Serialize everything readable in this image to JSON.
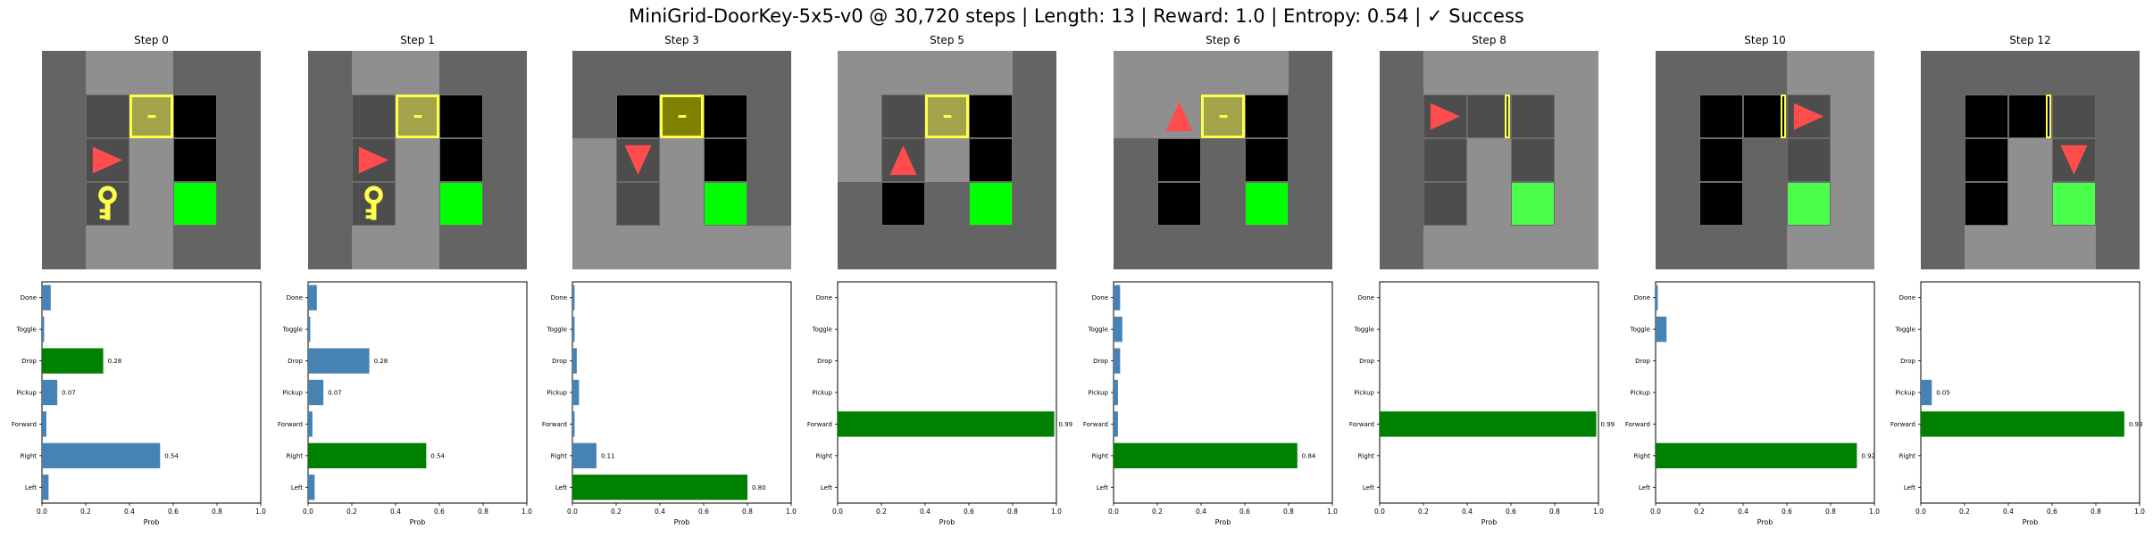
{
  "title": "MiniGrid-DoorKey-5x5-v0 @ 30,720 steps | Length: 13 | Reward: 1.0 | Entropy: 0.54 | ✓ Success",
  "colors": {
    "bar_default": "#4682b4",
    "bar_selected": "#008000",
    "agent": "#ff4c4c",
    "key": "#ffff4c",
    "door_border": "#ffff4c",
    "goal": "#00ff00",
    "floor_light": "#8f8f8f",
    "floor_dark": "#646464",
    "black": "#000000"
  },
  "actions": [
    "Left",
    "Right",
    "Forward",
    "Pickup",
    "Drop",
    "Toggle",
    "Done"
  ],
  "xlabel": "Prob",
  "xticks": [
    "0.0",
    "0.2",
    "0.4",
    "0.6",
    "0.8",
    "1.0"
  ],
  "xlim": [
    0,
    1
  ],
  "steps": [
    {
      "title": "Step 0",
      "probs": [
        0.03,
        0.54,
        0.02,
        0.07,
        0.28,
        0.01,
        0.04
      ],
      "selected": 4,
      "label": "0.54",
      "label_index": 1,
      "second_label": "0.28",
      "second_index": 4,
      "third_label": "0.07",
      "third_index": 3,
      "grid": {
        "base": [
          [
            "D",
            "L",
            "L",
            "D",
            "D"
          ],
          [
            "D",
            "C",
            "S",
            "K",
            "D"
          ],
          [
            "D",
            "C",
            "L",
            "K",
            "D"
          ],
          [
            "D",
            "C",
            "L",
            "G",
            "D"
          ],
          [
            "D",
            "L",
            "L",
            "D",
            "D"
          ]
        ],
        "agent": {
          "r": 2,
          "c": 1,
          "dir": "right"
        },
        "door": {
          "r": 1,
          "c": 2,
          "state": "locked"
        },
        "key": {
          "r": 3,
          "c": 1
        }
      }
    },
    {
      "title": "Step 1",
      "probs": [
        0.03,
        0.54,
        0.02,
        0.07,
        0.28,
        0.01,
        0.04
      ],
      "selected": 1,
      "label": "0.54",
      "label_index": 1,
      "second_label": "0.28",
      "second_index": 4,
      "third_label": "0.07",
      "third_index": 3,
      "grid": {
        "base": [
          [
            "D",
            "L",
            "L",
            "D",
            "D"
          ],
          [
            "D",
            "C",
            "S",
            "K",
            "D"
          ],
          [
            "D",
            "C",
            "L",
            "K",
            "D"
          ],
          [
            "D",
            "C",
            "L",
            "G",
            "D"
          ],
          [
            "D",
            "L",
            "L",
            "D",
            "D"
          ]
        ],
        "agent": {
          "r": 2,
          "c": 1,
          "dir": "right"
        },
        "door": {
          "r": 1,
          "c": 2,
          "state": "locked"
        },
        "key": {
          "r": 3,
          "c": 1
        }
      }
    },
    {
      "title": "Step 3",
      "probs": [
        0.8,
        0.11,
        0.01,
        0.03,
        0.02,
        0.01,
        0.01
      ],
      "selected": 0,
      "label": "0.80",
      "label_index": 0,
      "second_label": "0.11",
      "second_index": 1,
      "third_label": "",
      "third_index": -1,
      "grid": {
        "base": [
          [
            "D",
            "D",
            "D",
            "D",
            "D"
          ],
          [
            "D",
            "K",
            "S",
            "K",
            "D"
          ],
          [
            "L",
            "C",
            "L",
            "K",
            "D"
          ],
          [
            "L",
            "C",
            "L",
            "G",
            "D"
          ],
          [
            "L",
            "L",
            "L",
            "L",
            "L"
          ]
        ],
        "agent": {
          "r": 2,
          "c": 1,
          "dir": "down"
        },
        "door": {
          "r": 1,
          "c": 2,
          "state": "locked-dark"
        },
        "key": null
      }
    },
    {
      "title": "Step 5",
      "probs": [
        0.0,
        0.0,
        0.99,
        0.0,
        0.0,
        0.0,
        0.0
      ],
      "selected": 2,
      "label": "0.99",
      "label_index": 2,
      "second_label": "",
      "second_index": -1,
      "third_label": "",
      "third_index": -1,
      "grid": {
        "base": [
          [
            "L",
            "L",
            "L",
            "L",
            "D"
          ],
          [
            "L",
            "C",
            "S",
            "K",
            "D"
          ],
          [
            "L",
            "C",
            "L",
            "K",
            "D"
          ],
          [
            "D",
            "K",
            "D",
            "G",
            "D"
          ],
          [
            "D",
            "D",
            "D",
            "D",
            "D"
          ]
        ],
        "agent": {
          "r": 2,
          "c": 1,
          "dir": "up"
        },
        "door": {
          "r": 1,
          "c": 2,
          "state": "locked"
        },
        "key": null
      }
    },
    {
      "title": "Step 6",
      "probs": [
        0.0,
        0.84,
        0.02,
        0.02,
        0.03,
        0.04,
        0.03
      ],
      "selected": 1,
      "label": "0.84",
      "label_index": 1,
      "second_label": "",
      "second_index": -1,
      "third_label": "",
      "third_index": -1,
      "grid": {
        "base": [
          [
            "L",
            "L",
            "L",
            "L",
            "D"
          ],
          [
            "L",
            "L",
            "S",
            "K",
            "D"
          ],
          [
            "D",
            "K",
            "D",
            "K",
            "D"
          ],
          [
            "D",
            "K",
            "D",
            "G",
            "D"
          ],
          [
            "D",
            "D",
            "D",
            "D",
            "D"
          ]
        ],
        "agent": {
          "r": 1,
          "c": 1,
          "dir": "up"
        },
        "door": {
          "r": 1,
          "c": 2,
          "state": "locked"
        },
        "key": null
      }
    },
    {
      "title": "Step 8",
      "probs": [
        0.0,
        0.0,
        0.99,
        0.0,
        0.0,
        0.0,
        0.0
      ],
      "selected": 2,
      "label": "0.99",
      "label_index": 2,
      "second_label": "",
      "second_index": -1,
      "third_label": "",
      "third_index": -1,
      "grid": {
        "base": [
          [
            "D",
            "L",
            "L",
            "L",
            "L"
          ],
          [
            "D",
            "C",
            "C",
            "C",
            "L"
          ],
          [
            "D",
            "C",
            "L",
            "C",
            "L"
          ],
          [
            "D",
            "C",
            "L",
            "GL",
            "L"
          ],
          [
            "D",
            "L",
            "L",
            "L",
            "L"
          ]
        ],
        "agent": {
          "r": 1,
          "c": 1,
          "dir": "right"
        },
        "door": {
          "r": 1,
          "c": 2,
          "state": "open"
        },
        "key": null
      }
    },
    {
      "title": "Step 10",
      "probs": [
        0.0,
        0.92,
        0.0,
        0.0,
        0.0,
        0.05,
        0.01
      ],
      "selected": 1,
      "label": "0.92",
      "label_index": 1,
      "second_label": "",
      "second_index": -1,
      "third_label": "",
      "third_index": -1,
      "grid": {
        "base": [
          [
            "D",
            "D",
            "D",
            "L",
            "L"
          ],
          [
            "D",
            "K",
            "K",
            "C",
            "L"
          ],
          [
            "D",
            "K",
            "D",
            "C",
            "L"
          ],
          [
            "D",
            "K",
            "D",
            "GL",
            "L"
          ],
          [
            "D",
            "D",
            "D",
            "L",
            "L"
          ]
        ],
        "agent": {
          "r": 1,
          "c": 3,
          "dir": "right"
        },
        "door": {
          "r": 1,
          "c": 2,
          "state": "open"
        },
        "key": null
      }
    },
    {
      "title": "Step 12",
      "probs": [
        0.0,
        0.0,
        0.93,
        0.05,
        0.0,
        0.0,
        0.0
      ],
      "selected": 2,
      "label": "0.93",
      "label_index": 2,
      "second_label": "0.05",
      "second_index": 3,
      "third_label": "",
      "third_index": -1,
      "grid": {
        "base": [
          [
            "D",
            "D",
            "D",
            "D",
            "D"
          ],
          [
            "D",
            "K",
            "K",
            "C",
            "D"
          ],
          [
            "D",
            "K",
            "L",
            "C",
            "D"
          ],
          [
            "D",
            "K",
            "L",
            "GL",
            "D"
          ],
          [
            "D",
            "L",
            "L",
            "L",
            "D"
          ]
        ],
        "agent": {
          "r": 2,
          "c": 3,
          "dir": "down"
        },
        "door": {
          "r": 1,
          "c": 2,
          "state": "open"
        },
        "key": null
      }
    }
  ]
}
